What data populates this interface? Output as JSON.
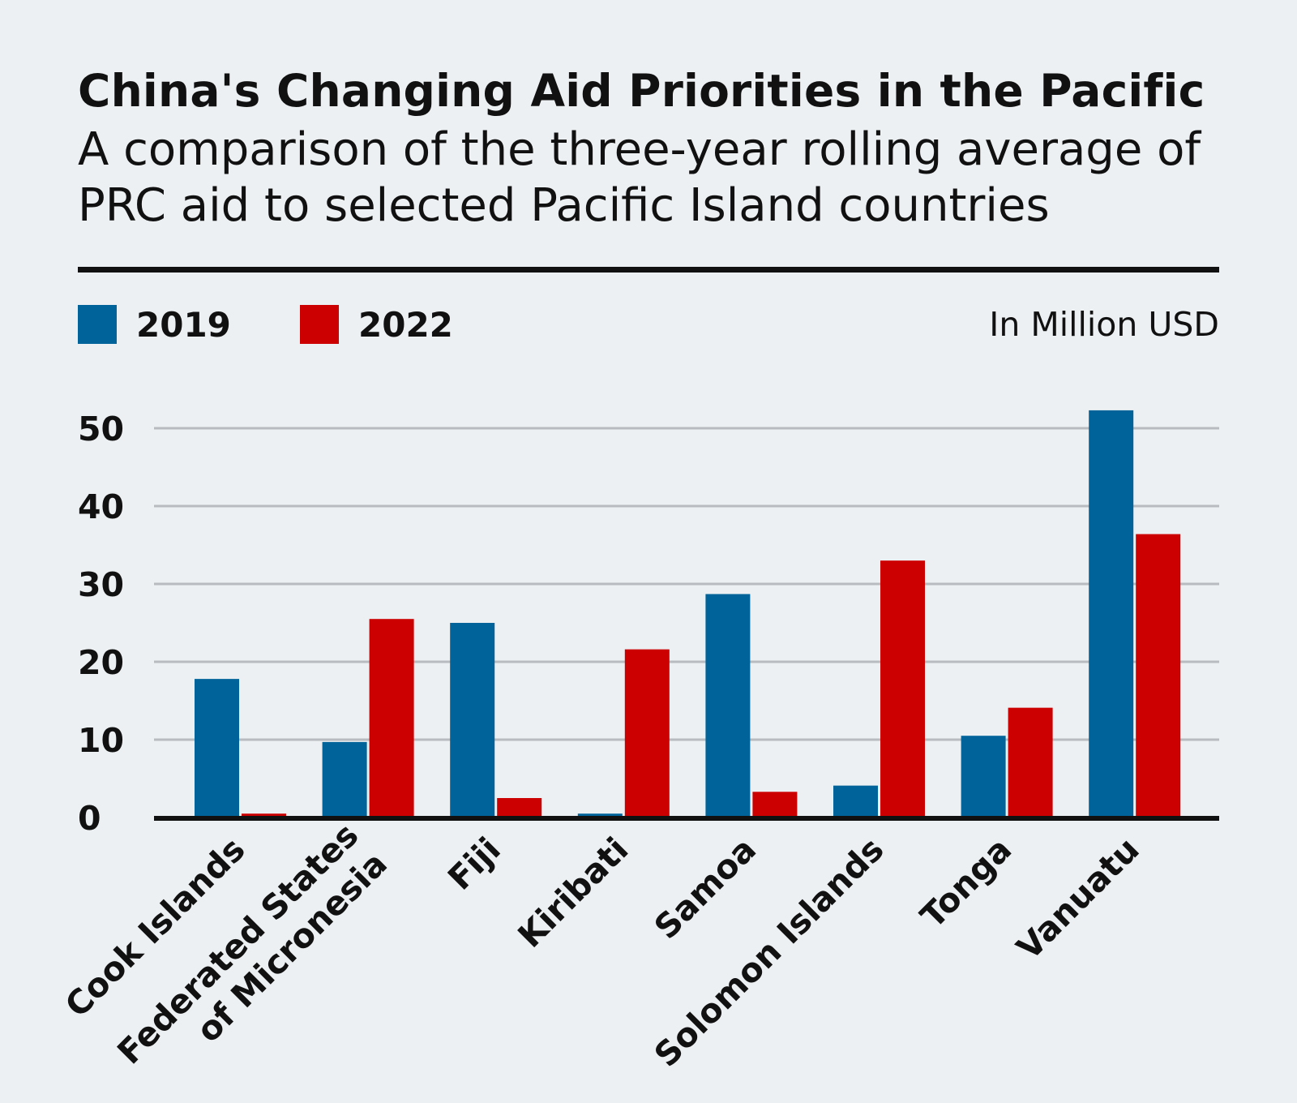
{
  "header": {
    "title": "China's Changing Aid Priorities in the Pacific",
    "subtitle": "A comparison of the three-year rolling average of PRC aid to selected Pacific Island countries"
  },
  "legend": {
    "unit": "In Million USD"
  },
  "colors": {
    "2019": "#00649a",
    "2022": "#cc0000",
    "grid": "#b8bcc0",
    "axis": "#111111"
  },
  "chart_data": {
    "type": "bar",
    "categories": [
      "Cook Islands",
      "Federated States of Micronesia",
      "Fiji",
      "Kiribati",
      "Samoa",
      "Solomon Islands",
      "Tonga",
      "Vanuatu"
    ],
    "category_lines": [
      [
        "Cook Islands"
      ],
      [
        "Federated States",
        "of Micronesia"
      ],
      [
        "Fiji"
      ],
      [
        "Kiribati"
      ],
      [
        "Samoa"
      ],
      [
        "Solomon Islands"
      ],
      [
        "Tonga"
      ],
      [
        "Vanuatu"
      ]
    ],
    "series": [
      {
        "name": "2019",
        "values": [
          17.8,
          9.7,
          25.0,
          0.5,
          28.7,
          4.1,
          10.5,
          52.3
        ]
      },
      {
        "name": "2022",
        "values": [
          0.5,
          25.5,
          2.5,
          21.6,
          3.3,
          33.0,
          14.1,
          36.4
        ]
      }
    ],
    "yticks": [
      0,
      10,
      20,
      30,
      40,
      50
    ],
    "ylim": [
      0,
      52.3
    ],
    "grid": true,
    "legend_position": "top-left",
    "xlabel": "",
    "ylabel": ""
  }
}
